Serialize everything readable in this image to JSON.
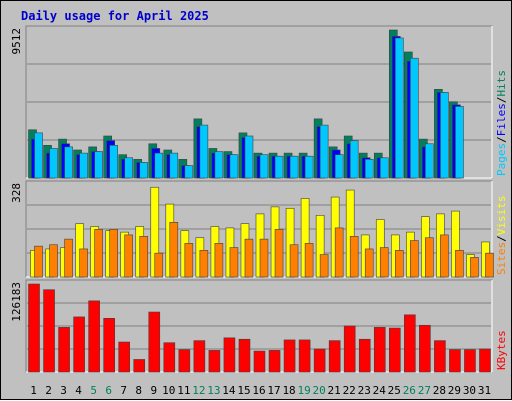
{
  "title": "Daily usage for April 2025",
  "colors": {
    "background": "#c0c0c0",
    "title": "#0000cc",
    "hits": "#00805c",
    "files": "#0000ff",
    "pages": "#00c8ff",
    "visits": "#ffff00",
    "sites": "#ff8000",
    "kbytes": "#ff0000",
    "weekend_label": "#00805c",
    "day_label": "#000000"
  },
  "chart_data": [
    {
      "type": "bar",
      "title": "Daily usage for April 2025",
      "panel": "top",
      "ymax_label": "9512",
      "ylim": [
        0,
        9512
      ],
      "right_label": [
        "Pages",
        "Files",
        "Hits"
      ],
      "categories": [
        "1",
        "2",
        "3",
        "4",
        "5",
        "6",
        "7",
        "8",
        "9",
        "10",
        "11",
        "12",
        "13",
        "14",
        "15",
        "16",
        "17",
        "18",
        "19",
        "20",
        "21",
        "22",
        "23",
        "24",
        "25",
        "26",
        "27",
        "28",
        "29",
        "30",
        "31"
      ],
      "weekend_days": [
        "5",
        "6",
        "12",
        "13",
        "19",
        "20",
        "26",
        "27"
      ],
      "series": [
        {
          "name": "Hits",
          "values": [
            3100,
            2100,
            2500,
            1800,
            2000,
            2700,
            1500,
            1200,
            2200,
            1800,
            1200,
            3800,
            1900,
            1700,
            2900,
            1600,
            1600,
            1600,
            1600,
            3800,
            2000,
            2700,
            1600,
            1600,
            9512,
            8100,
            2500,
            5700,
            4900,
            0,
            0
          ]
        },
        {
          "name": "Files",
          "values": [
            2500,
            1600,
            2200,
            1500,
            1700,
            2400,
            1200,
            1000,
            1900,
            1500,
            800,
            3300,
            1600,
            1500,
            2600,
            1400,
            1400,
            1400,
            1400,
            3300,
            1800,
            2200,
            1300,
            1300,
            9100,
            7500,
            2000,
            5500,
            4700,
            0,
            0
          ]
        },
        {
          "name": "Pages",
          "values": [
            2900,
            1900,
            2000,
            1600,
            1700,
            2100,
            1300,
            1000,
            1600,
            1600,
            800,
            3400,
            1700,
            1500,
            2700,
            1500,
            1400,
            1400,
            1400,
            3400,
            1500,
            2400,
            1200,
            1300,
            9000,
            7700,
            2200,
            5500,
            4600,
            0,
            0
          ]
        }
      ]
    },
    {
      "type": "bar",
      "panel": "middle",
      "ymax_label": "328",
      "ylim": [
        0,
        328
      ],
      "right_label": [
        "Sites",
        "Visits"
      ],
      "categories": [
        "1",
        "2",
        "3",
        "4",
        "5",
        "6",
        "7",
        "8",
        "9",
        "10",
        "11",
        "12",
        "13",
        "14",
        "15",
        "16",
        "17",
        "18",
        "19",
        "20",
        "21",
        "22",
        "23",
        "24",
        "25",
        "26",
        "27",
        "28",
        "29",
        "30",
        "31"
      ],
      "series": [
        {
          "name": "Visits",
          "values": [
            95,
            100,
            105,
            190,
            180,
            165,
            160,
            180,
            320,
            260,
            165,
            140,
            180,
            175,
            190,
            225,
            250,
            245,
            280,
            220,
            285,
            310,
            150,
            205,
            150,
            160,
            215,
            225,
            235,
            80,
            125
          ]
        },
        {
          "name": "Sites",
          "values": [
            110,
            115,
            135,
            100,
            170,
            170,
            150,
            145,
            85,
            195,
            120,
            95,
            120,
            105,
            135,
            135,
            170,
            115,
            120,
            80,
            175,
            145,
            100,
            105,
            95,
            130,
            140,
            150,
            95,
            70,
            85
          ]
        }
      ]
    },
    {
      "type": "bar",
      "panel": "bottom",
      "ymax_label": "126183",
      "ylim": [
        0,
        126183
      ],
      "right_label": [
        "KBytes"
      ],
      "categories": [
        "1",
        "2",
        "3",
        "4",
        "5",
        "6",
        "7",
        "8",
        "9",
        "10",
        "11",
        "12",
        "13",
        "14",
        "15",
        "16",
        "17",
        "18",
        "19",
        "20",
        "21",
        "22",
        "23",
        "24",
        "25",
        "26",
        "27",
        "28",
        "29",
        "30",
        "31"
      ],
      "series": [
        {
          "name": "KBytes",
          "values": [
            126183,
            118000,
            64000,
            79000,
            102000,
            77000,
            43000,
            18000,
            86000,
            42000,
            32000,
            45000,
            31000,
            49000,
            47000,
            30000,
            31000,
            46000,
            46000,
            33000,
            45000,
            66000,
            47000,
            64000,
            63000,
            82000,
            67000,
            45000,
            32000,
            32000,
            33000
          ]
        }
      ]
    }
  ]
}
